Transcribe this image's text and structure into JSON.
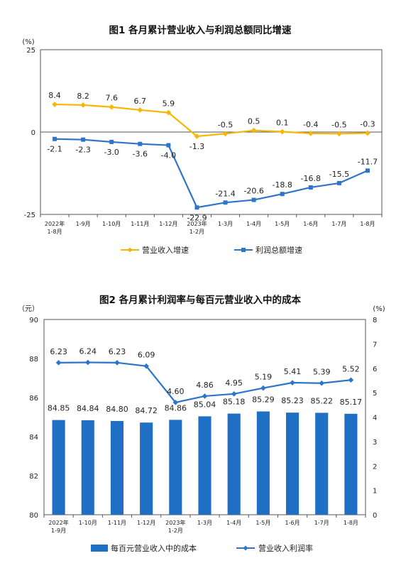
{
  "chart_data": [
    {
      "type": "line",
      "title": "图1  各月累计营业收入与利润总额同比增速",
      "y_unit": "(%)",
      "ylim": [
        -25,
        25
      ],
      "yticks": [
        "25",
        "0",
        "-25"
      ],
      "categories": [
        [
          "2022年",
          "1-8月"
        ],
        [
          "1-9月"
        ],
        [
          "1-10月"
        ],
        [
          "1-11月"
        ],
        [
          "1-12月"
        ],
        [
          "2023年",
          "1-2月"
        ],
        [
          "1-3月"
        ],
        [
          "1-4月"
        ],
        [
          "1-5月"
        ],
        [
          "1-6月"
        ],
        [
          "1-7月"
        ],
        [
          "1-8月"
        ]
      ],
      "series": [
        {
          "name": "营业收入增速",
          "color": "#F5B800",
          "marker": "diamond",
          "values": [
            8.4,
            8.2,
            7.6,
            6.7,
            5.9,
            -1.3,
            -0.5,
            0.5,
            0.1,
            -0.4,
            -0.5,
            -0.3
          ],
          "labels": [
            "8.4",
            "8.2",
            "7.6",
            "6.7",
            "5.9",
            "-1.3",
            "-0.5",
            "0.5",
            "0.1",
            "-0.4",
            "-0.5",
            "-0.3"
          ]
        },
        {
          "name": "利润总额增速",
          "color": "#2E74C8",
          "marker": "square",
          "values": [
            -2.1,
            -2.3,
            -3.0,
            -3.6,
            -4.0,
            -22.9,
            -21.4,
            -20.6,
            -18.8,
            -16.8,
            -15.5,
            -11.7
          ],
          "labels": [
            "-2.1",
            "-2.3",
            "-3.0",
            "-3.6",
            "-4.0",
            "-22.9",
            "-21.4",
            "-20.6",
            "-18.8",
            "-16.8",
            "-15.5",
            "-11.7"
          ]
        }
      ],
      "grid": false,
      "legend_position": "bottom"
    },
    {
      "type": "bar",
      "title": "图2  各月累计利润率与每百元营业收入中的成本",
      "y_left_unit": "（元）",
      "y_right_unit": "(%)",
      "ylim_left": [
        80,
        90
      ],
      "ylim_right": [
        0,
        8
      ],
      "yticks_left": [
        "80",
        "82",
        "84",
        "86",
        "88",
        "90"
      ],
      "yticks_right": [
        "0",
        "1",
        "2",
        "3",
        "4",
        "5",
        "6",
        "7",
        "8"
      ],
      "categories": [
        [
          "2022年",
          "1-9月"
        ],
        [
          "1-10月"
        ],
        [
          "1-11月"
        ],
        [
          "1-12月"
        ],
        [
          "2023年",
          "1-2月"
        ],
        [
          "1-3月"
        ],
        [
          "1-4月"
        ],
        [
          "1-5月"
        ],
        [
          "1-6月"
        ],
        [
          "1-7月"
        ],
        [
          "1-8月"
        ]
      ],
      "series": [
        {
          "name": "每百元营业收入中的成本",
          "type": "bar",
          "axis": "left",
          "color": "#1F6FC5",
          "values": [
            84.85,
            84.84,
            84.8,
            84.72,
            84.86,
            85.04,
            85.18,
            85.29,
            85.23,
            85.22,
            85.17
          ],
          "labels": [
            "84.85",
            "84.84",
            "84.80",
            "84.72",
            "84.86",
            "85.04",
            "85.18",
            "85.29",
            "85.23",
            "85.22",
            "85.17"
          ]
        },
        {
          "name": "营业收入利润率",
          "type": "line",
          "axis": "right",
          "color": "#2E74C8",
          "marker": "diamond",
          "values": [
            6.23,
            6.24,
            6.23,
            6.09,
            4.6,
            4.86,
            4.95,
            5.19,
            5.41,
            5.39,
            5.52
          ],
          "labels": [
            "6.23",
            "6.24",
            "6.23",
            "6.09",
            "4.60",
            "4.86",
            "4.95",
            "5.19",
            "5.41",
            "5.39",
            "5.52"
          ]
        }
      ],
      "grid": false,
      "legend_position": "bottom"
    }
  ]
}
